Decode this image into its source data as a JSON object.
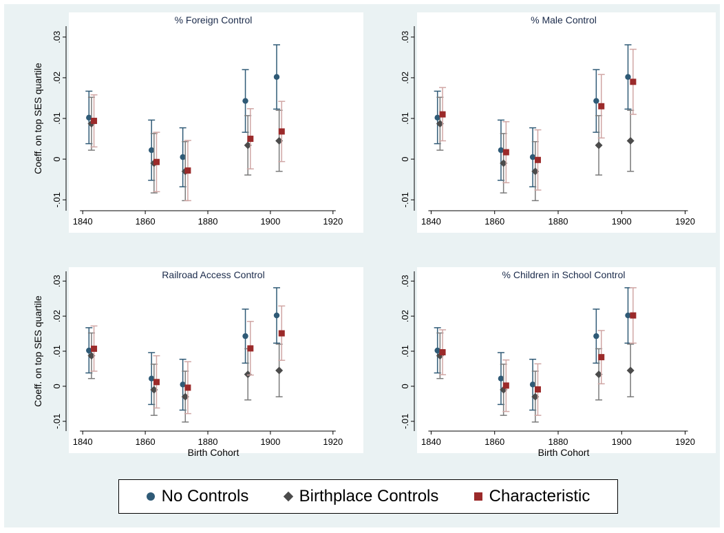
{
  "colors": {
    "background": "#eaf2f3",
    "no_controls": "#2f5a76",
    "birthplace": "#4b4b4b",
    "characteristic": "#9b2a2a",
    "birthplace_ci": "#7a7a7a",
    "characteristic_ci": "#d0a6a4"
  },
  "legend": {
    "items": [
      {
        "label": "No Controls",
        "marker": "circle",
        "color": "#2f5a76"
      },
      {
        "label": "Birthplace Controls",
        "marker": "diamond",
        "color": "#4b4b4b"
      },
      {
        "label": "Characteristic",
        "marker": "square",
        "color": "#9b2a2a"
      }
    ]
  },
  "chart_data": [
    {
      "type": "scatter",
      "title": "% Foreign Control",
      "xlabel": "",
      "ylabel": "Coeff. on top SES quartile",
      "xlim": [
        1836,
        1924
      ],
      "ylim": [
        -0.012,
        0.032
      ],
      "xticks": [
        "1840",
        "1860",
        "1880",
        "1900",
        "1920"
      ],
      "yticks": [
        "-.01",
        "0",
        ".01",
        ".02",
        ".03"
      ],
      "grid": false,
      "series": [
        {
          "name": "No Controls",
          "marker": "circle",
          "points": [
            {
              "x": 1842,
              "y": 0.0102,
              "lo": 0.0038,
              "hi": 0.0167
            },
            {
              "x": 1862,
              "y": 0.0022,
              "lo": -0.0052,
              "hi": 0.0096
            },
            {
              "x": 1872,
              "y": 0.0005,
              "lo": -0.0068,
              "hi": 0.0077
            },
            {
              "x": 1892,
              "y": 0.0143,
              "lo": 0.0066,
              "hi": 0.022
            },
            {
              "x": 1902,
              "y": 0.0202,
              "lo": 0.0123,
              "hi": 0.0281
            }
          ]
        },
        {
          "name": "Birthplace Controls",
          "marker": "diamond",
          "points": [
            {
              "x": 1842.8,
              "y": 0.0087,
              "lo": 0.0022,
              "hi": 0.0152
            },
            {
              "x": 1862.8,
              "y": -0.001,
              "lo": -0.0083,
              "hi": 0.0063
            },
            {
              "x": 1872.8,
              "y": -0.003,
              "lo": -0.0102,
              "hi": 0.0043
            },
            {
              "x": 1892.8,
              "y": 0.0034,
              "lo": -0.0039,
              "hi": 0.0107
            },
            {
              "x": 1902.8,
              "y": 0.0045,
              "lo": -0.003,
              "hi": 0.012
            }
          ]
        },
        {
          "name": "Characteristic",
          "marker": "square",
          "points": [
            {
              "x": 1843.6,
              "y": 0.0094,
              "lo": 0.003,
              "hi": 0.0158
            },
            {
              "x": 1863.6,
              "y": -0.0007,
              "lo": -0.008,
              "hi": 0.0066
            },
            {
              "x": 1873.6,
              "y": -0.0028,
              "lo": -0.0102,
              "hi": 0.0046
            },
            {
              "x": 1893.6,
              "y": 0.005,
              "lo": -0.0024,
              "hi": 0.0124
            },
            {
              "x": 1903.6,
              "y": 0.0068,
              "lo": -0.0006,
              "hi": 0.0142
            }
          ]
        }
      ]
    },
    {
      "type": "scatter",
      "title": "% Male Control",
      "xlabel": "",
      "ylabel": "",
      "xlim": [
        1836,
        1924
      ],
      "ylim": [
        -0.012,
        0.032
      ],
      "xticks": [
        "1840",
        "1860",
        "1880",
        "1900",
        "1920"
      ],
      "yticks": [
        "-.01",
        "0",
        ".01",
        ".02",
        ".03"
      ],
      "grid": false,
      "series": [
        {
          "name": "No Controls",
          "marker": "circle",
          "points": [
            {
              "x": 1842,
              "y": 0.0102,
              "lo": 0.0038,
              "hi": 0.0167
            },
            {
              "x": 1862,
              "y": 0.0022,
              "lo": -0.0052,
              "hi": 0.0096
            },
            {
              "x": 1872,
              "y": 0.0005,
              "lo": -0.0068,
              "hi": 0.0077
            },
            {
              "x": 1892,
              "y": 0.0143,
              "lo": 0.0066,
              "hi": 0.022
            },
            {
              "x": 1902,
              "y": 0.0202,
              "lo": 0.0123,
              "hi": 0.0281
            }
          ]
        },
        {
          "name": "Birthplace Controls",
          "marker": "diamond",
          "points": [
            {
              "x": 1842.8,
              "y": 0.0087,
              "lo": 0.0022,
              "hi": 0.0152
            },
            {
              "x": 1862.8,
              "y": -0.001,
              "lo": -0.0083,
              "hi": 0.0063
            },
            {
              "x": 1872.8,
              "y": -0.003,
              "lo": -0.0102,
              "hi": 0.0043
            },
            {
              "x": 1892.8,
              "y": 0.0034,
              "lo": -0.0039,
              "hi": 0.0107
            },
            {
              "x": 1902.8,
              "y": 0.0045,
              "lo": -0.003,
              "hi": 0.012
            }
          ]
        },
        {
          "name": "Characteristic",
          "marker": "square",
          "points": [
            {
              "x": 1843.6,
              "y": 0.011,
              "lo": 0.0045,
              "hi": 0.0176
            },
            {
              "x": 1863.6,
              "y": 0.0017,
              "lo": -0.0058,
              "hi": 0.0092
            },
            {
              "x": 1873.6,
              "y": -0.0002,
              "lo": -0.0076,
              "hi": 0.0072
            },
            {
              "x": 1893.6,
              "y": 0.013,
              "lo": 0.0052,
              "hi": 0.0208
            },
            {
              "x": 1903.6,
              "y": 0.019,
              "lo": 0.011,
              "hi": 0.027
            }
          ]
        }
      ]
    },
    {
      "type": "scatter",
      "title": "Railroad Access Control",
      "xlabel": "Birth Cohort",
      "ylabel": "Coeff. on top SES quartile",
      "xlim": [
        1836,
        1924
      ],
      "ylim": [
        -0.012,
        0.032
      ],
      "xticks": [
        "1840",
        "1860",
        "1880",
        "1900",
        "1920"
      ],
      "yticks": [
        "-.01",
        "0",
        ".01",
        ".02",
        ".03"
      ],
      "grid": false,
      "series": [
        {
          "name": "No Controls",
          "marker": "circle",
          "points": [
            {
              "x": 1842,
              "y": 0.0102,
              "lo": 0.0038,
              "hi": 0.0167
            },
            {
              "x": 1862,
              "y": 0.0022,
              "lo": -0.0052,
              "hi": 0.0096
            },
            {
              "x": 1872,
              "y": 0.0005,
              "lo": -0.0068,
              "hi": 0.0077
            },
            {
              "x": 1892,
              "y": 0.0143,
              "lo": 0.0066,
              "hi": 0.022
            },
            {
              "x": 1902,
              "y": 0.0202,
              "lo": 0.0123,
              "hi": 0.0281
            }
          ]
        },
        {
          "name": "Birthplace Controls",
          "marker": "diamond",
          "points": [
            {
              "x": 1842.8,
              "y": 0.0087,
              "lo": 0.0022,
              "hi": 0.0152
            },
            {
              "x": 1862.8,
              "y": -0.001,
              "lo": -0.0083,
              "hi": 0.0063
            },
            {
              "x": 1872.8,
              "y": -0.003,
              "lo": -0.0102,
              "hi": 0.0043
            },
            {
              "x": 1892.8,
              "y": 0.0034,
              "lo": -0.0039,
              "hi": 0.0107
            },
            {
              "x": 1902.8,
              "y": 0.0045,
              "lo": -0.003,
              "hi": 0.012
            }
          ]
        },
        {
          "name": "Characteristic",
          "marker": "square",
          "points": [
            {
              "x": 1843.6,
              "y": 0.0107,
              "lo": 0.0043,
              "hi": 0.0172
            },
            {
              "x": 1863.6,
              "y": 0.0012,
              "lo": -0.0062,
              "hi": 0.0087
            },
            {
              "x": 1873.6,
              "y": -0.0004,
              "lo": -0.0078,
              "hi": 0.007
            },
            {
              "x": 1893.6,
              "y": 0.0108,
              "lo": 0.0032,
              "hi": 0.0185
            },
            {
              "x": 1903.6,
              "y": 0.0151,
              "lo": 0.0074,
              "hi": 0.0229
            }
          ]
        }
      ]
    },
    {
      "type": "scatter",
      "title": "% Children in School Control",
      "xlabel": "Birth Cohort",
      "ylabel": "",
      "xlim": [
        1836,
        1924
      ],
      "ylim": [
        -0.012,
        0.032
      ],
      "xticks": [
        "1840",
        "1860",
        "1880",
        "1900",
        "1920"
      ],
      "yticks": [
        "-.01",
        "0",
        ".01",
        ".02",
        ".03"
      ],
      "grid": false,
      "series": [
        {
          "name": "No Controls",
          "marker": "circle",
          "points": [
            {
              "x": 1842,
              "y": 0.0102,
              "lo": 0.0038,
              "hi": 0.0167
            },
            {
              "x": 1862,
              "y": 0.0022,
              "lo": -0.0052,
              "hi": 0.0096
            },
            {
              "x": 1872,
              "y": 0.0005,
              "lo": -0.0068,
              "hi": 0.0077
            },
            {
              "x": 1892,
              "y": 0.0143,
              "lo": 0.0066,
              "hi": 0.022
            },
            {
              "x": 1902,
              "y": 0.0202,
              "lo": 0.0123,
              "hi": 0.0281
            }
          ]
        },
        {
          "name": "Birthplace Controls",
          "marker": "diamond",
          "points": [
            {
              "x": 1842.8,
              "y": 0.0087,
              "lo": 0.0022,
              "hi": 0.0152
            },
            {
              "x": 1862.8,
              "y": -0.001,
              "lo": -0.0083,
              "hi": 0.0063
            },
            {
              "x": 1872.8,
              "y": -0.003,
              "lo": -0.0102,
              "hi": 0.0043
            },
            {
              "x": 1892.8,
              "y": 0.0034,
              "lo": -0.0039,
              "hi": 0.0107
            },
            {
              "x": 1902.8,
              "y": 0.0045,
              "lo": -0.003,
              "hi": 0.012
            }
          ]
        },
        {
          "name": "Characteristic",
          "marker": "square",
          "points": [
            {
              "x": 1843.6,
              "y": 0.0097,
              "lo": 0.0033,
              "hi": 0.0161
            },
            {
              "x": 1863.6,
              "y": 0.0002,
              "lo": -0.0072,
              "hi": 0.0075
            },
            {
              "x": 1873.6,
              "y": -0.0009,
              "lo": -0.0083,
              "hi": 0.0064
            },
            {
              "x": 1893.6,
              "y": 0.0083,
              "lo": 0.0007,
              "hi": 0.0159
            },
            {
              "x": 1903.6,
              "y": 0.0202,
              "lo": 0.0123,
              "hi": 0.0281
            }
          ]
        }
      ]
    }
  ]
}
